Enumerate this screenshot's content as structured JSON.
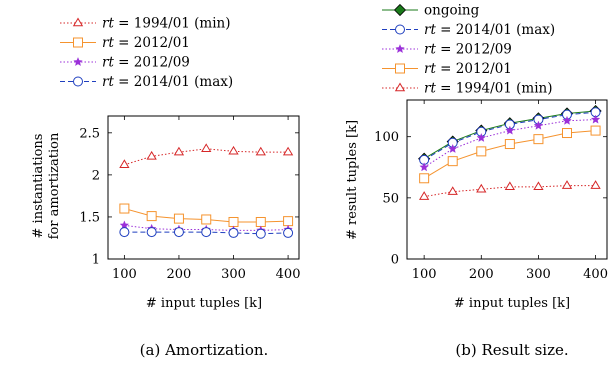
{
  "chart_data": [
    {
      "type": "line",
      "caption": "(a) Amortization.",
      "xlabel": "# input tuples [k]",
      "ylabel_lines": [
        "# instantiations",
        "for amortization"
      ],
      "x": [
        100,
        150,
        200,
        250,
        300,
        350,
        400
      ],
      "xticks": [
        100,
        200,
        300,
        400
      ],
      "xlim": [
        70,
        420
      ],
      "yticks": [
        1,
        1.5,
        2,
        2.5
      ],
      "ylim": [
        1,
        2.7
      ],
      "legend_position": "top",
      "series": [
        {
          "name_prefix": "rt",
          "name_value": " = 1994/01 (min)",
          "color": "#d62728",
          "marker": "triangle",
          "dash": "dotted",
          "values": [
            2.12,
            2.22,
            2.27,
            2.31,
            2.28,
            2.27,
            2.27
          ]
        },
        {
          "name_prefix": "rt",
          "name_value": " = 2012/01",
          "color": "#f5932e",
          "marker": "square",
          "dash": "solid",
          "values": [
            1.6,
            1.51,
            1.48,
            1.47,
            1.44,
            1.44,
            1.45
          ]
        },
        {
          "name_prefix": "rt",
          "name_value": " = 2012/09",
          "color": "#9b30d9",
          "marker": "star",
          "dash": "dotted",
          "values": [
            1.4,
            1.36,
            1.35,
            1.35,
            1.34,
            1.34,
            1.35
          ]
        },
        {
          "name_prefix": "rt",
          "name_value": " = 2014/01 (max)",
          "color": "#1f3fbf",
          "marker": "circle",
          "dash": "dashed",
          "values": [
            1.32,
            1.32,
            1.32,
            1.32,
            1.31,
            1.3,
            1.31
          ]
        }
      ]
    },
    {
      "type": "line",
      "caption": "(b) Result size.",
      "xlabel": "# input tuples [k]",
      "ylabel_lines": [
        "# result tuples [k]"
      ],
      "x": [
        100,
        150,
        200,
        250,
        300,
        350,
        400
      ],
      "xticks": [
        100,
        200,
        300,
        400
      ],
      "xlim": [
        70,
        420
      ],
      "yticks": [
        0,
        50,
        100
      ],
      "ylim": [
        0,
        130
      ],
      "legend_position": "top",
      "series": [
        {
          "name_prefix": "",
          "name_value": "ongoing",
          "color": "#1a7a1a",
          "marker": "diamond",
          "dash": "solid",
          "values": [
            82,
            96,
            105,
            111,
            115,
            119,
            121
          ]
        },
        {
          "name_prefix": "rt",
          "name_value": " = 2014/01 (max)",
          "color": "#1f3fbf",
          "marker": "circle",
          "dash": "dashed",
          "values": [
            81,
            95,
            104,
            110,
            114,
            118,
            120
          ]
        },
        {
          "name_prefix": "rt",
          "name_value": " = 2012/09",
          "color": "#9b30d9",
          "marker": "star",
          "dash": "dotted",
          "values": [
            75,
            90,
            99,
            105,
            109,
            113,
            114
          ]
        },
        {
          "name_prefix": "rt",
          "name_value": " = 2012/01",
          "color": "#f5932e",
          "marker": "square",
          "dash": "solid",
          "values": [
            66,
            80,
            88,
            94,
            98,
            103,
            105
          ]
        },
        {
          "name_prefix": "rt",
          "name_value": " = 1994/01 (min)",
          "color": "#d62728",
          "marker": "triangle",
          "dash": "dotted",
          "values": [
            51,
            55,
            57,
            59,
            59,
            60,
            60
          ]
        }
      ]
    }
  ]
}
